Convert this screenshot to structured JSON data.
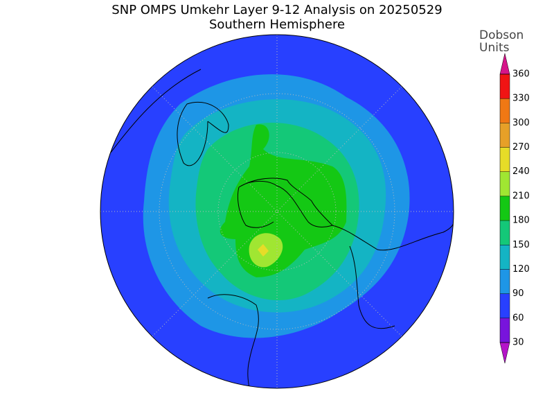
{
  "header": {
    "title": "SNP OMPS Umkehr Layer 9-12 Analysis on 20250529",
    "subtitle": "Southern Hemisphere"
  },
  "colorbar": {
    "label": [
      "Dobson",
      "Units"
    ],
    "ticks": [
      30,
      60,
      90,
      120,
      150,
      180,
      210,
      240,
      270,
      300,
      330,
      360
    ],
    "colors": [
      "#b414c8",
      "#7814dc",
      "#2840ff",
      "#1e96e6",
      "#14b4c4",
      "#14c878",
      "#14c814",
      "#a0e632",
      "#e6dc28",
      "#e6a028",
      "#f07814",
      "#f01414",
      "#d6158a"
    ]
  }
}
